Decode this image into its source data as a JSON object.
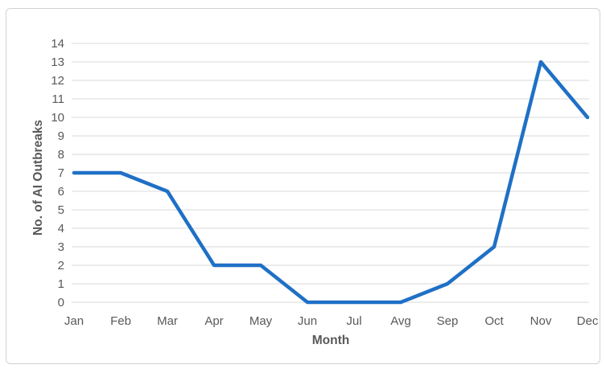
{
  "chart_data": {
    "type": "line",
    "title": "",
    "categories": [
      "Jan",
      "Feb",
      "Mar",
      "Apr",
      "May",
      "Jun",
      "Jul",
      "Avg",
      "Sep",
      "Oct",
      "Nov",
      "Dec"
    ],
    "values": [
      7,
      7,
      6,
      2,
      2,
      0,
      0,
      0,
      1,
      3,
      13,
      10
    ],
    "xlabel": "Month",
    "ylabel": "No. of AI Outbreaks",
    "ylim": [
      0,
      14
    ],
    "yticks": [
      0,
      1,
      2,
      3,
      4,
      5,
      6,
      7,
      8,
      9,
      10,
      11,
      12,
      13,
      14
    ],
    "grid": true,
    "legend": false,
    "colors": {
      "line": "#1F70C6",
      "gridline": "#D9D9D9",
      "axis_text": "#595959",
      "chart_border": "#D2D2D2",
      "background": "#FFFFFF"
    }
  }
}
